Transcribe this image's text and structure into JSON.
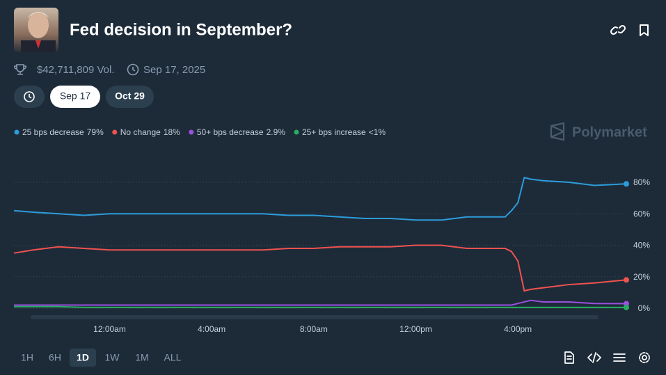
{
  "header": {
    "title": "Fed decision in September?",
    "volume": "$42,711,809 Vol.",
    "date": "Sep 17, 2025"
  },
  "tabs": [
    "Sep 17",
    "Oct 29"
  ],
  "brand": "Polymarket",
  "time_ranges": [
    "1H",
    "6H",
    "1D",
    "1W",
    "1M",
    "ALL"
  ],
  "chart_data": {
    "type": "line",
    "x": [
      -3.75,
      -3,
      -2,
      -1,
      0,
      1,
      2,
      3,
      4,
      5,
      6,
      7,
      8,
      9,
      10,
      11,
      12,
      13,
      14,
      15,
      15.5,
      15.75,
      16,
      16.25,
      16.5,
      17,
      18,
      19,
      20.25
    ],
    "xlim": [
      -3.75,
      20.25
    ],
    "xticks": [
      {
        "value": 0,
        "label": "12:00am"
      },
      {
        "value": 4,
        "label": "4:00am"
      },
      {
        "value": 8,
        "label": "8:00am"
      },
      {
        "value": 12,
        "label": "12:00pm"
      },
      {
        "value": 16,
        "label": "4:00pm"
      }
    ],
    "ylim": [
      0,
      85
    ],
    "yticks": [
      {
        "value": 0,
        "label": "0%"
      },
      {
        "value": 20,
        "label": "20%"
      },
      {
        "value": 40,
        "label": "40%"
      },
      {
        "value": 60,
        "label": "60%"
      },
      {
        "value": 80,
        "label": "80%"
      }
    ],
    "grid": true,
    "series": [
      {
        "name": "25 bps decrease",
        "value_label": "79%",
        "color": "#2d9cdb",
        "values": [
          62,
          61,
          60,
          59,
          60,
          60,
          60,
          60,
          60,
          60,
          60,
          59,
          59,
          58,
          57,
          57,
          56,
          56,
          58,
          58,
          58,
          62,
          67,
          83,
          82,
          81,
          80,
          78,
          79
        ]
      },
      {
        "name": "No change",
        "value_label": "18%",
        "color": "#f0524f",
        "values": [
          35,
          37,
          39,
          38,
          37,
          37,
          37,
          37,
          37,
          37,
          37,
          38,
          38,
          39,
          39,
          39,
          40,
          40,
          38,
          38,
          38,
          36,
          30,
          11,
          12,
          13,
          15,
          16,
          18
        ]
      },
      {
        "name": "50+ bps decrease",
        "value_label": "2.9%",
        "color": "#9b51e0",
        "values": [
          2,
          2,
          2,
          2,
          2,
          2,
          2,
          2,
          2,
          2,
          2,
          2,
          2,
          2,
          2,
          2,
          2,
          2,
          2,
          2,
          2,
          2,
          3,
          4,
          5,
          4,
          4,
          3,
          2.9
        ]
      },
      {
        "name": "25+ bps increase",
        "value_label": "<1%",
        "color": "#27ae60",
        "values": [
          1,
          1,
          1,
          0.5,
          0.5,
          0.5,
          0.5,
          0.5,
          0.5,
          0.5,
          0.5,
          0.5,
          0.5,
          0.5,
          0.5,
          0.5,
          0.5,
          0.5,
          0.5,
          0.5,
          0.5,
          0.5,
          0.5,
          0.5,
          0.5,
          0.5,
          0.5,
          0.5,
          0.5
        ]
      }
    ]
  }
}
